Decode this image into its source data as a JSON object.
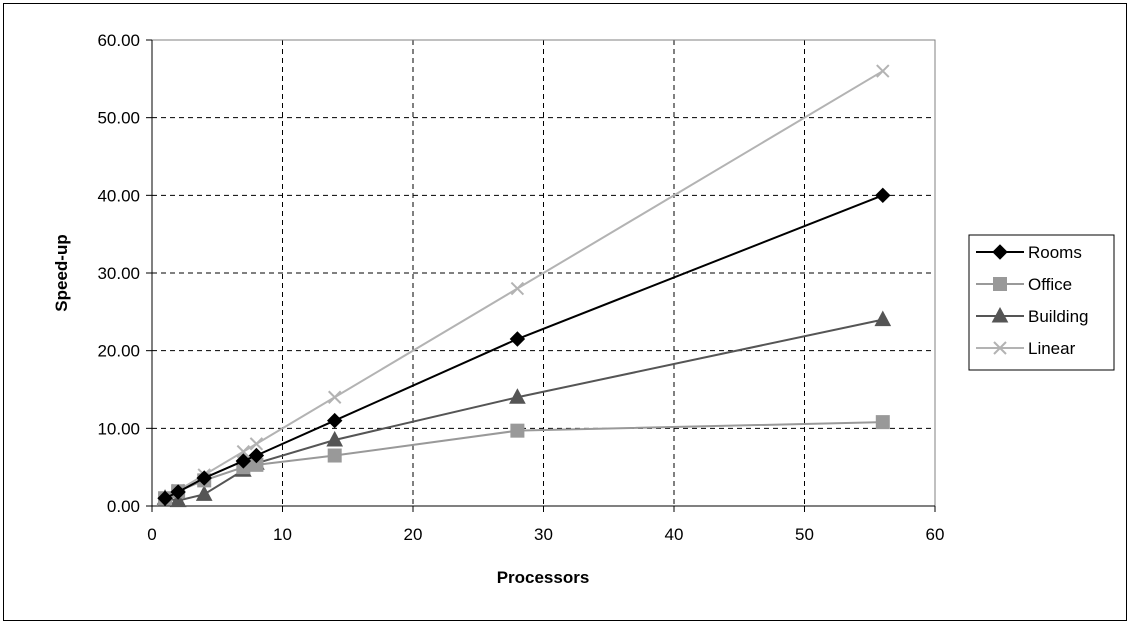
{
  "chart_data": {
    "type": "line",
    "title": "",
    "xlabel": "Processors",
    "ylabel": "Speed-up",
    "xlim": [
      0,
      60
    ],
    "ylim": [
      0,
      60
    ],
    "x_ticks": [
      "0",
      "10",
      "20",
      "30",
      "40",
      "50",
      "60"
    ],
    "y_ticks": [
      "0.00",
      "10.00",
      "20.00",
      "30.00",
      "40.00",
      "50.00",
      "60.00"
    ],
    "grid": true,
    "legend_position": "right",
    "series": [
      {
        "name": "Rooms",
        "marker": "diamond",
        "color": "#000000",
        "x": [
          1,
          2,
          4,
          7,
          8,
          14,
          28,
          56
        ],
        "y": [
          1.0,
          1.8,
          3.6,
          5.8,
          6.5,
          11.0,
          21.5,
          40.0
        ]
      },
      {
        "name": "Office",
        "marker": "square",
        "color": "#999999",
        "x": [
          1,
          2,
          4,
          7,
          8,
          14,
          28,
          56
        ],
        "y": [
          1.0,
          1.9,
          3.3,
          5.0,
          5.3,
          6.5,
          9.7,
          10.8
        ]
      },
      {
        "name": "Building",
        "marker": "triangle",
        "color": "#555555",
        "x": [
          1,
          2,
          4,
          7,
          8,
          14,
          28,
          56
        ],
        "y": [
          1.0,
          0.7,
          1.5,
          4.6,
          5.5,
          8.5,
          14.0,
          24.0
        ]
      },
      {
        "name": "Linear",
        "marker": "x",
        "color": "#b3b3b3",
        "x": [
          1,
          2,
          4,
          7,
          8,
          14,
          28,
          56
        ],
        "y": [
          1,
          2,
          4,
          7,
          8,
          14,
          28,
          56
        ]
      }
    ]
  }
}
